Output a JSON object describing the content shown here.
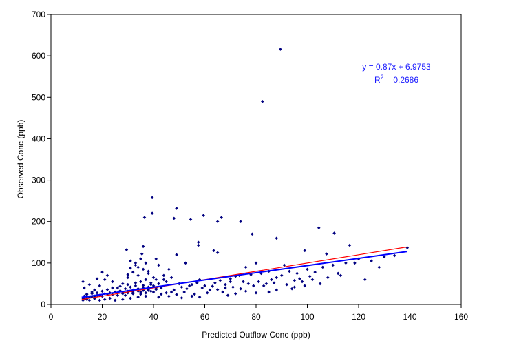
{
  "chart_data": {
    "type": "scatter",
    "title": "",
    "xlabel": "Predicted Outflow Conc (ppb)",
    "ylabel": "Observed Conc (ppb)",
    "xlim": [
      0,
      160
    ],
    "ylim": [
      0,
      700
    ],
    "xticks": [
      "0",
      "20",
      "40",
      "60",
      "80",
      "100",
      "120",
      "140",
      "160"
    ],
    "yticks": [
      "0",
      "100",
      "200",
      "300",
      "400",
      "500",
      "600",
      "700"
    ],
    "grid": false,
    "legend": "none",
    "point_color": "#000080",
    "annotation": {
      "equation": "y = 0.87x + 6.9753",
      "r2_prefix": "R",
      "r2_sup": "2",
      "r2_suffix": " = 0.2686"
    },
    "trendline": {
      "slope": 0.87,
      "intercept": 6.9753,
      "x_range": [
        12,
        139
      ],
      "color": "#0000ff"
    },
    "reference_line": {
      "x_range": [
        12,
        139
      ],
      "y_range": [
        12,
        139
      ],
      "color": "#ff0000"
    },
    "points": [
      [
        89.5,
        616
      ],
      [
        82.5,
        490
      ],
      [
        39.5,
        258
      ],
      [
        39.5,
        220
      ],
      [
        49,
        232
      ],
      [
        48,
        208
      ],
      [
        36.5,
        210
      ],
      [
        59.5,
        215
      ],
      [
        54.5,
        205
      ],
      [
        66.5,
        210
      ],
      [
        65,
        200
      ],
      [
        74,
        200
      ],
      [
        78.5,
        170
      ],
      [
        88,
        160
      ],
      [
        104.5,
        185
      ],
      [
        110.5,
        172
      ],
      [
        57.5,
        150
      ],
      [
        57.5,
        143
      ],
      [
        63.5,
        130
      ],
      [
        65,
        125
      ],
      [
        29.5,
        132
      ],
      [
        35.5,
        122
      ],
      [
        36,
        140
      ],
      [
        116.5,
        143
      ],
      [
        139,
        137
      ],
      [
        99,
        130
      ],
      [
        107.5,
        122
      ],
      [
        49,
        120
      ],
      [
        52.5,
        100
      ],
      [
        118.5,
        100
      ],
      [
        128,
        90
      ],
      [
        122.5,
        60
      ],
      [
        113,
        70
      ],
      [
        95,
        58
      ],
      [
        91,
        95
      ],
      [
        88,
        65
      ],
      [
        85,
        80
      ],
      [
        80,
        100
      ],
      [
        76,
        90
      ],
      [
        73.5,
        70
      ],
      [
        70,
        55
      ],
      [
        68,
        40
      ],
      [
        62,
        35
      ],
      [
        58,
        60
      ],
      [
        55,
        48
      ],
      [
        51,
        42
      ],
      [
        47,
        30
      ],
      [
        43,
        25
      ],
      [
        41,
        60
      ],
      [
        42,
        95
      ],
      [
        41,
        110
      ],
      [
        38,
        80
      ],
      [
        34,
        70
      ],
      [
        33,
        100
      ],
      [
        31,
        88
      ],
      [
        30,
        65
      ],
      [
        28,
        50
      ],
      [
        26,
        40
      ],
      [
        24,
        55
      ],
      [
        22,
        70
      ],
      [
        21,
        60
      ],
      [
        20,
        78
      ],
      [
        19,
        45
      ],
      [
        18,
        62
      ],
      [
        17,
        35
      ],
      [
        16,
        30
      ],
      [
        15,
        48
      ],
      [
        14,
        25
      ],
      [
        13,
        40
      ],
      [
        13,
        20
      ],
      [
        12.5,
        55
      ],
      [
        12.5,
        15
      ],
      [
        14,
        12
      ],
      [
        16,
        18
      ],
      [
        18,
        22
      ],
      [
        20,
        20
      ],
      [
        22,
        25
      ],
      [
        24,
        24
      ],
      [
        26,
        28
      ],
      [
        28,
        30
      ],
      [
        30,
        32
      ],
      [
        32,
        35
      ],
      [
        34,
        38
      ],
      [
        36,
        40
      ],
      [
        38,
        42
      ],
      [
        40,
        45
      ],
      [
        35,
        55
      ],
      [
        37,
        60
      ],
      [
        39,
        52
      ],
      [
        33,
        45
      ],
      [
        31,
        42
      ],
      [
        29,
        38
      ],
      [
        27,
        33
      ],
      [
        25,
        30
      ],
      [
        23,
        28
      ],
      [
        21,
        26
      ],
      [
        19,
        22
      ],
      [
        17,
        20
      ],
      [
        15,
        18
      ],
      [
        13,
        15
      ],
      [
        60,
        45
      ],
      [
        64,
        52
      ],
      [
        66,
        58
      ],
      [
        70,
        62
      ],
      [
        72,
        68
      ],
      [
        75,
        55
      ],
      [
        78,
        72
      ],
      [
        82,
        75
      ],
      [
        86,
        60
      ],
      [
        90,
        70
      ],
      [
        93,
        80
      ],
      [
        96,
        75
      ],
      [
        100,
        85
      ],
      [
        103,
        78
      ],
      [
        106,
        90
      ],
      [
        110,
        95
      ],
      [
        115,
        100
      ],
      [
        120,
        110
      ],
      [
        125,
        105
      ],
      [
        130,
        115
      ],
      [
        134,
        118
      ],
      [
        101,
        68
      ],
      [
        97,
        62
      ],
      [
        84,
        50
      ],
      [
        79,
        45
      ],
      [
        67,
        30
      ],
      [
        61,
        28
      ],
      [
        56,
        25
      ],
      [
        53,
        38
      ],
      [
        45,
        55
      ],
      [
        44,
        70
      ],
      [
        46,
        85
      ],
      [
        43,
        40
      ],
      [
        40,
        30
      ],
      [
        37,
        20
      ],
      [
        34,
        18
      ],
      [
        31,
        15
      ],
      [
        28,
        12
      ],
      [
        25,
        10
      ],
      [
        23,
        15
      ],
      [
        21,
        12
      ],
      [
        19,
        10
      ],
      [
        17,
        14
      ],
      [
        15,
        10
      ],
      [
        14,
        16
      ],
      [
        12.5,
        10
      ],
      [
        29,
        22
      ],
      [
        32,
        26
      ],
      [
        35,
        30
      ],
      [
        38,
        34
      ],
      [
        41,
        36
      ],
      [
        39,
        48
      ],
      [
        36,
        46
      ],
      [
        33,
        52
      ],
      [
        30,
        48
      ],
      [
        27,
        44
      ],
      [
        24,
        40
      ],
      [
        22,
        36
      ],
      [
        20,
        32
      ],
      [
        18,
        28
      ],
      [
        16,
        26
      ],
      [
        14,
        24
      ],
      [
        26,
        22
      ],
      [
        28,
        26
      ],
      [
        30,
        28
      ],
      [
        32,
        30
      ],
      [
        34,
        32
      ],
      [
        36,
        34
      ],
      [
        38,
        36
      ],
      [
        35,
        25
      ],
      [
        37,
        28
      ],
      [
        39,
        32
      ],
      [
        41,
        40
      ],
      [
        42,
        50
      ],
      [
        40,
        65
      ],
      [
        38,
        75
      ],
      [
        36,
        85
      ],
      [
        34,
        90
      ],
      [
        32,
        78
      ],
      [
        30,
        72
      ],
      [
        37,
        100
      ],
      [
        35,
        110
      ],
      [
        33,
        95
      ],
      [
        31,
        105
      ],
      [
        44,
        60
      ],
      [
        47,
        65
      ],
      [
        50,
        50
      ],
      [
        54,
        45
      ],
      [
        57,
        52
      ],
      [
        59,
        40
      ],
      [
        63,
        44
      ],
      [
        65,
        36
      ],
      [
        68,
        48
      ],
      [
        71,
        42
      ],
      [
        74,
        38
      ],
      [
        77,
        50
      ],
      [
        81,
        55
      ],
      [
        83,
        45
      ],
      [
        87,
        52
      ],
      [
        92,
        48
      ],
      [
        95,
        42
      ],
      [
        98,
        55
      ],
      [
        102,
        60
      ],
      [
        108,
        65
      ],
      [
        112,
        75
      ],
      [
        105,
        50
      ],
      [
        99,
        45
      ],
      [
        94,
        38
      ],
      [
        88,
        35
      ],
      [
        85,
        30
      ],
      [
        80,
        28
      ],
      [
        76,
        32
      ],
      [
        72,
        26
      ],
      [
        69,
        22
      ],
      [
        52,
        30
      ],
      [
        48,
        35
      ],
      [
        45,
        28
      ],
      [
        42,
        18
      ],
      [
        46,
        20
      ],
      [
        49,
        24
      ],
      [
        51,
        16
      ],
      [
        55,
        20
      ],
      [
        58,
        18
      ]
    ]
  }
}
